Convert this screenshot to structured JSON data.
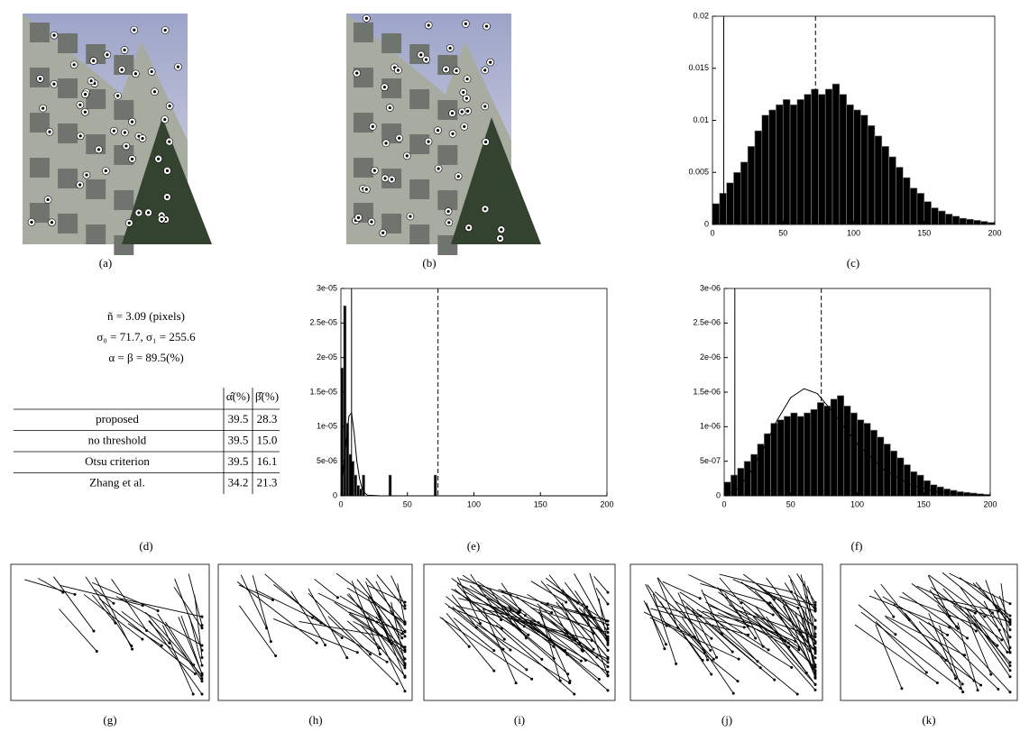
{
  "captions": [
    "(a)",
    "(b)",
    "(c)",
    "(d)",
    "(e)",
    "(f)",
    "(g)",
    "(h)",
    "(i)",
    "(j)",
    "(k)"
  ],
  "stats": [
    "ñ = 3.09 (pixels)",
    "σ₀ = 71.7, σ₁ = 255.6",
    "α = β = 89.5(%)"
  ],
  "table": {
    "header": [
      "α̂(%)",
      "β̂(%)"
    ],
    "rows": [
      [
        "proposed",
        "39.5",
        "28.3"
      ],
      [
        "no threshold",
        "39.5",
        "15.0"
      ],
      [
        "Otsu criterion",
        "39.5",
        "16.1"
      ],
      [
        "Zhang et al.",
        "34.2",
        "21.3"
      ]
    ]
  },
  "chart_data": [
    {
      "type": "histogram",
      "color": "#000000",
      "bins": [
        0,
        5,
        10,
        15,
        20,
        25,
        30,
        35,
        40,
        45,
        50,
        55,
        60,
        65,
        70,
        75,
        80,
        85,
        90,
        95,
        100,
        105,
        110,
        115,
        120,
        125,
        130,
        135,
        140,
        145,
        150,
        155,
        160,
        165,
        170,
        175,
        180,
        185,
        190,
        195,
        200
      ],
      "values": [
        0.002,
        0.003,
        0.004,
        0.005,
        0.006,
        0.0075,
        0.009,
        0.0105,
        0.011,
        0.0115,
        0.012,
        0.0115,
        0.012,
        0.0125,
        0.013,
        0.0125,
        0.013,
        0.0135,
        0.0125,
        0.0115,
        0.011,
        0.0105,
        0.0095,
        0.0085,
        0.0075,
        0.0065,
        0.0055,
        0.0045,
        0.0035,
        0.003,
        0.0022,
        0.0016,
        0.0013,
        0.001,
        0.0008,
        0.0006,
        0.0005,
        0.0004,
        0.0003,
        0.0002
      ],
      "xlim": [
        0,
        200
      ],
      "ylim": [
        0,
        0.02
      ],
      "xticks": [
        0,
        50,
        100,
        150,
        200
      ],
      "yticks": [
        0,
        0.005,
        0.01,
        0.015,
        0.02
      ],
      "vlines": [
        {
          "x": 8,
          "dashed": false
        },
        {
          "x": 73,
          "dashed": true
        }
      ]
    },
    {
      "type": "histogram",
      "color": "#000000",
      "bins": [
        0,
        2,
        4,
        6,
        8,
        10,
        12,
        14,
        16,
        18,
        20,
        36,
        38,
        70,
        72,
        200
      ],
      "values": [
        1.85e-05,
        2.75e-05,
        1.05e-05,
        6e-06,
        5e-06,
        3e-06,
        1.5e-06,
        1e-06,
        3e-06,
        0,
        0,
        3e-06,
        0,
        3e-06,
        0
      ],
      "curve": {
        "x": [
          0,
          3,
          6,
          8,
          10,
          12,
          14,
          16,
          18,
          20,
          30,
          200
        ],
        "y": [
          0,
          6e-06,
          1.15e-05,
          1.2e-05,
          9e-06,
          5e-06,
          2.5e-06,
          1e-06,
          4e-07,
          1e-07,
          0,
          0
        ]
      },
      "xlim": [
        0,
        200
      ],
      "ylim": [
        0,
        3e-05
      ],
      "xticks": [
        0,
        50,
        100,
        150,
        200
      ],
      "yticks": [
        0,
        {
          "value": 5e-06,
          "label": "5e-06"
        },
        {
          "value": 1e-05,
          "label": "1e-05"
        },
        {
          "value": 1.5e-05,
          "label": "1.5e-05"
        },
        {
          "value": 2e-05,
          "label": "2e-05"
        },
        {
          "value": 2.5e-05,
          "label": "2.5e-05"
        },
        {
          "value": 3e-05,
          "label": "3e-05"
        }
      ],
      "vlines": [
        {
          "x": 8,
          "dashed": false
        },
        {
          "x": 73,
          "dashed": true
        }
      ]
    },
    {
      "type": "histogram",
      "color": "#000000",
      "bins": [
        0,
        5,
        10,
        15,
        20,
        25,
        30,
        35,
        40,
        45,
        50,
        55,
        60,
        65,
        70,
        75,
        80,
        85,
        90,
        95,
        100,
        105,
        110,
        115,
        120,
        125,
        130,
        135,
        140,
        145,
        150,
        155,
        160,
        165,
        170,
        175,
        180,
        185,
        190,
        195,
        200
      ],
      "values": [
        2e-07,
        3e-07,
        4e-07,
        5e-07,
        6e-07,
        7.5e-07,
        9e-07,
        1.05e-06,
        1.1e-06,
        1.15e-06,
        1.2e-06,
        1.15e-06,
        1.2e-06,
        1.25e-06,
        1.35e-06,
        1.3e-06,
        1.4e-06,
        1.45e-06,
        1.3e-06,
        1.2e-06,
        1.1e-06,
        1.05e-06,
        9.5e-07,
        8.5e-07,
        7.5e-07,
        6.5e-07,
        5.5e-07,
        4.5e-07,
        3.5e-07,
        3e-07,
        2.2e-07,
        1.6e-07,
        1.3e-07,
        1e-07,
        8e-08,
        6e-08,
        5e-08,
        4e-08,
        3e-08,
        2e-08
      ],
      "curve": {
        "x": [
          0,
          10,
          20,
          30,
          40,
          50,
          60,
          70,
          80,
          90,
          100,
          120,
          140,
          160,
          180,
          200
        ],
        "y": [
          0,
          1e-07,
          3.5e-07,
          7e-07,
          1.1e-06,
          1.42e-06,
          1.55e-06,
          1.48e-06,
          1.25e-06,
          1e-06,
          7.5e-07,
          3.8e-07,
          1.6e-07,
          6e-08,
          2e-08,
          1e-08
        ]
      },
      "xlim": [
        0,
        200
      ],
      "ylim": [
        0,
        3e-06
      ],
      "xticks": [
        0,
        50,
        100,
        150,
        200
      ],
      "yticks": [
        0,
        {
          "value": 5e-07,
          "label": "5e-07"
        },
        {
          "value": 1e-06,
          "label": "1e-06"
        },
        {
          "value": 1.5e-06,
          "label": "1.5e-06"
        },
        {
          "value": 2e-06,
          "label": "2e-06"
        },
        {
          "value": 2.5e-06,
          "label": "2.5e-06"
        },
        {
          "value": 3e-06,
          "label": "3e-06"
        }
      ],
      "vlines": [
        {
          "x": 8,
          "dashed": false
        },
        {
          "x": 73,
          "dashed": true
        }
      ]
    }
  ]
}
